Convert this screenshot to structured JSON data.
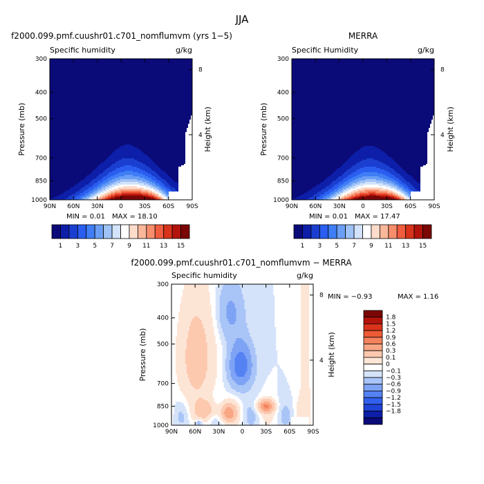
{
  "figure": {
    "title": "JJA",
    "bottom_title": "f2000.099.pmf.cuushr01.c701_nomflumvm − MERRA"
  },
  "colors": {
    "positive_scale": [
      "#0a0a78",
      "#0d1ea8",
      "#1a3fd0",
      "#2a5ef0",
      "#3f7ef5",
      "#6a9ff5",
      "#9fc2f7",
      "#d2e3fb",
      "#ffffff",
      "#fddccb",
      "#fbb79a",
      "#f78d6b",
      "#ef5c3e",
      "#d9331b",
      "#b2140c",
      "#7a0606"
    ],
    "diff_scale": [
      "#0a0a78",
      "#0d1ea8",
      "#1f43d6",
      "#3260ee",
      "#5482f2",
      "#7ea3f4",
      "#a9c4f7",
      "#d5e3fa",
      "#ffffff",
      "#fde5d6",
      "#fcc8ae",
      "#f9a684",
      "#f4825c",
      "#ed5b36",
      "#d9331b",
      "#b2140c",
      "#7a0606"
    ]
  },
  "chart_data": [
    {
      "type": "heatmap",
      "title": "f2000.099.pmf.cuushr01.c701_nomflumvm (yrs 1−5)",
      "subtitle_left": "Specific humidity",
      "subtitle_right": "g/kg",
      "xlabel": "",
      "ylabel": "Pressure (mb)",
      "ylabel_right": "Height (km)",
      "x_ticks": [
        "90N",
        "60N",
        "30N",
        "0",
        "30S",
        "60S",
        "90S"
      ],
      "y_ticks": [
        "300",
        "400",
        "500",
        "700",
        "850",
        "1000"
      ],
      "y_tick_values": [
        300,
        400,
        500,
        700,
        850,
        1000
      ],
      "right_ticks": [
        "8",
        "4"
      ],
      "right_tick_values": [
        8,
        4
      ],
      "min_label": "MIN =   0.01",
      "max_label": "MAX =  18.10",
      "min": 0.01,
      "max": 18.1,
      "peak_lat": -8,
      "surface_lat_low": 65,
      "surface_pressure_high": 720,
      "colorbar_labels": [
        "1",
        "3",
        "5",
        "7",
        "9",
        "11",
        "13",
        "15"
      ],
      "levels": [
        1,
        2,
        3,
        4,
        5,
        6,
        7,
        8,
        9,
        10,
        11,
        12,
        13,
        14,
        15
      ]
    },
    {
      "type": "heatmap",
      "title": "MERRA",
      "subtitle_left": "Specific Humidity",
      "subtitle_right": "g/kg",
      "xlabel": "",
      "ylabel": "Pressure (mb)",
      "ylabel_right": "Height (km)",
      "x_ticks": [
        "90N",
        "60N",
        "30N",
        "0",
        "30S",
        "60S",
        "90S"
      ],
      "y_ticks": [
        "300",
        "400",
        "500",
        "700",
        "850",
        "1000"
      ],
      "y_tick_values": [
        300,
        400,
        500,
        700,
        850,
        1000
      ],
      "right_ticks": [
        "8",
        "4"
      ],
      "right_tick_values": [
        8,
        4
      ],
      "min_label": "MIN =   0.01",
      "max_label": "MAX =  17.47",
      "min": 0.01,
      "max": 17.47,
      "peak_lat": -8,
      "surface_lat_low": 78,
      "surface_pressure_high": 720,
      "colorbar_labels": [
        "1",
        "3",
        "5",
        "7",
        "9",
        "11",
        "13",
        "15"
      ],
      "levels": [
        1,
        2,
        3,
        4,
        5,
        6,
        7,
        8,
        9,
        10,
        11,
        12,
        13,
        14,
        15
      ]
    },
    {
      "type": "heatmap",
      "title": "f2000.099.pmf.cuushr01.c701_nomflumvm − MERRA",
      "subtitle_left": "Specific humidity",
      "subtitle_right": "g/kg",
      "xlabel": "",
      "ylabel": "Pressure (mb)",
      "ylabel_right": "Height (km)",
      "x_ticks": [
        "90N",
        "60N",
        "30N",
        "0",
        "30S",
        "60S",
        "90S"
      ],
      "y_ticks": [
        "300",
        "400",
        "500",
        "700",
        "850",
        "1000"
      ],
      "y_tick_values": [
        300,
        400,
        500,
        700,
        850,
        1000
      ],
      "right_ticks": [
        "8",
        "4"
      ],
      "right_tick_values": [
        8,
        4
      ],
      "min_label": "MIN =   −0.93",
      "max_label": "MAX =    1.16",
      "min": -0.93,
      "max": 1.16,
      "colorbar_labels": [
        "1.8",
        "1.5",
        "1.2",
        "0.9",
        "0.6",
        "0.3",
        "0.1",
        "0",
        "−0.1",
        "−0.3",
        "−0.6",
        "−0.9",
        "−1.2",
        "−1.5",
        "−1.8"
      ],
      "levels": [
        -1.8,
        -1.5,
        -1.2,
        -0.9,
        -0.6,
        -0.3,
        -0.1,
        0,
        0.1,
        0.3,
        0.6,
        0.9,
        1.2,
        1.5,
        1.8
      ]
    }
  ]
}
